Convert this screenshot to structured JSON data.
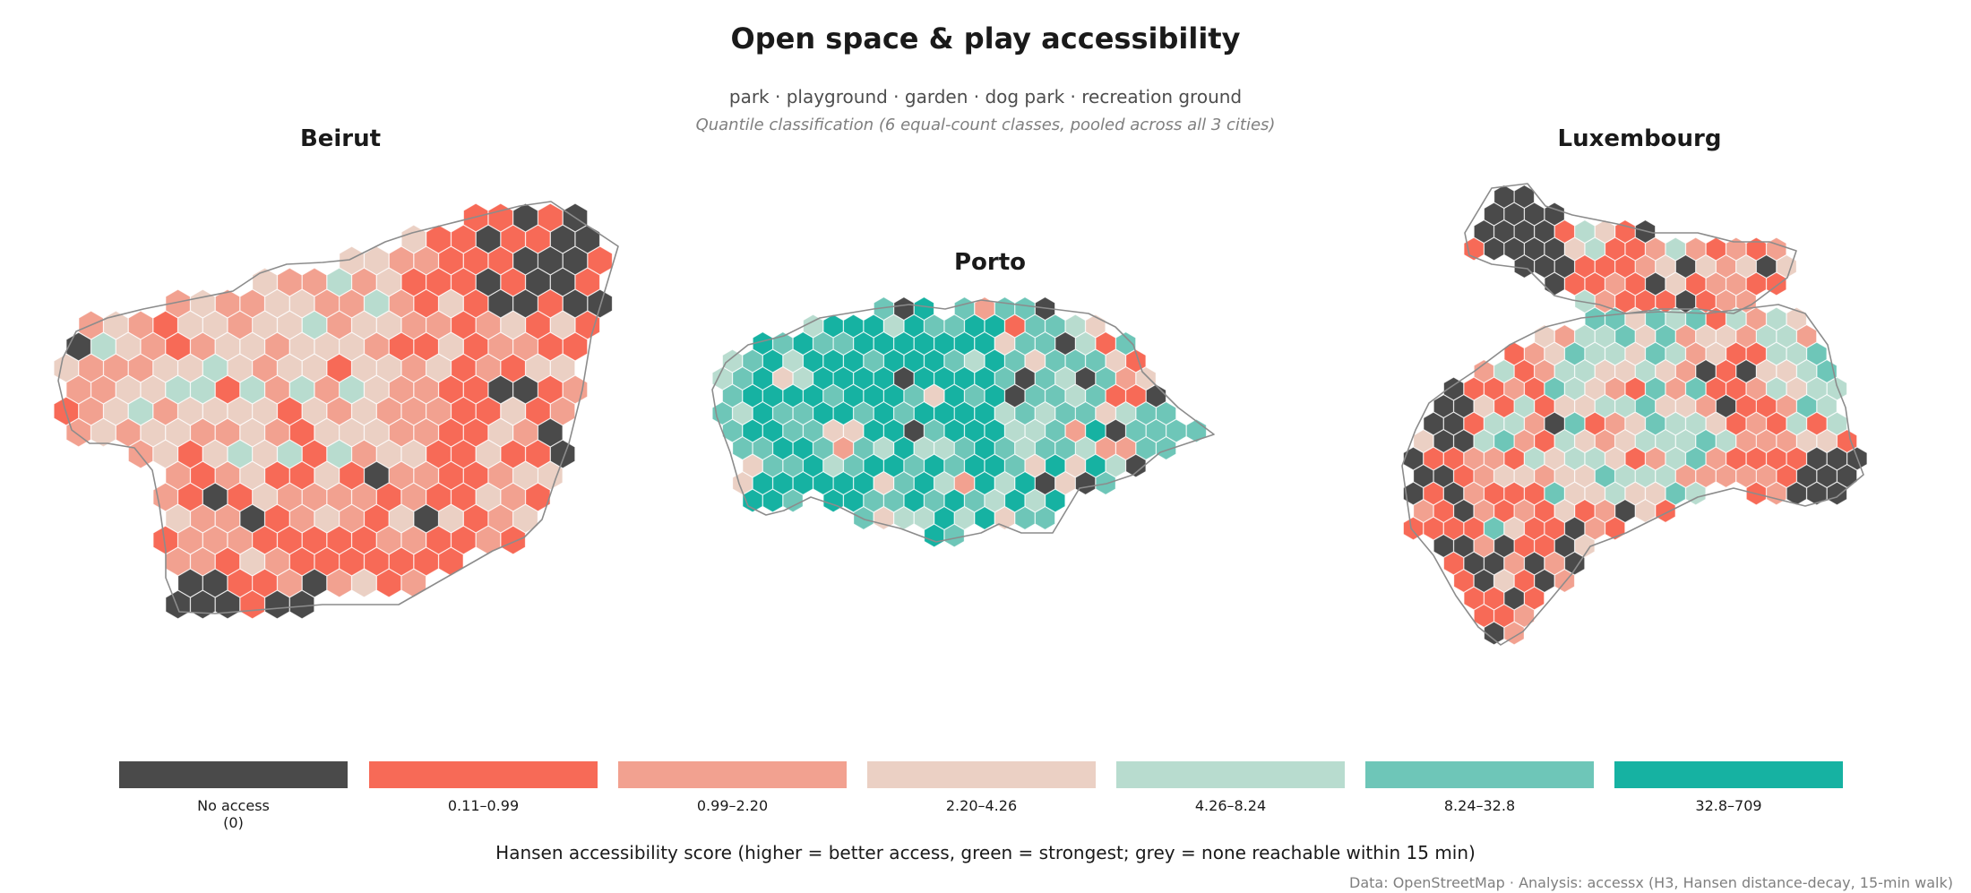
{
  "title": "Open space & play accessibility",
  "subtitle": "park · playground · garden · dog park · recreation ground",
  "note": "Quantile classification (6 equal-count classes, pooled across all 3 cities)",
  "cities": [
    {
      "name": "Beirut"
    },
    {
      "name": "Porto"
    },
    {
      "name": "Luxembourg"
    }
  ],
  "legend": {
    "title": "Hansen accessibility score  (higher = better access, green = strongest; grey = none reachable within 15 min)",
    "classes": [
      {
        "label": "No access\n(0)",
        "color": "#4a4a4a"
      },
      {
        "label": "0.11–0.99",
        "color": "#f76a57"
      },
      {
        "label": "0.99–2.20",
        "color": "#f2a190"
      },
      {
        "label": "2.20–4.26",
        "color": "#ebd0c4"
      },
      {
        "label": "4.26–8.24",
        "color": "#b8dccf"
      },
      {
        "label": "8.24–32.8",
        "color": "#6ec6b8"
      },
      {
        "label": "32.8–709",
        "color": "#16b2a2"
      }
    ]
  },
  "credits": "Data: OpenStreetMap  ·  Analysis: accessx (H3, Hansen distance-decay, 15-min walk)"
}
